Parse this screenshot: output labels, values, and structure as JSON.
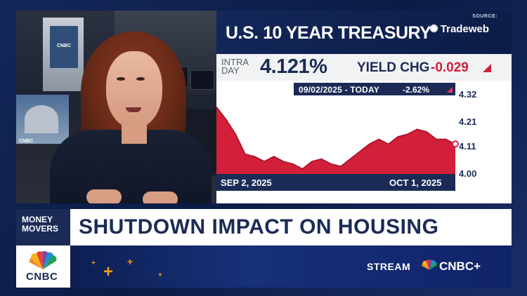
{
  "chart_panel": {
    "title": "U.S. 10 YEAR TREASURY",
    "source_label": "SOURCE:",
    "source_name": "Tradeweb",
    "intra_label": "INTRA DAY",
    "yield": "4.121%",
    "yield_change_label": "YIELD CHG",
    "yield_change_value": "-0.029",
    "range_label": "09/02/2025 - TODAY",
    "range_change": "-2.62%"
  },
  "chart_data": {
    "type": "area",
    "x_start_label": "SEP 2, 2025",
    "x_end_label": "OCT 1, 2025",
    "ytick_labels": [
      "4.32",
      "4.21",
      "4.11",
      "4.00"
    ],
    "ylim": [
      4.0,
      4.32
    ],
    "values": [
      4.27,
      4.22,
      4.16,
      4.08,
      4.07,
      4.05,
      4.07,
      4.05,
      4.04,
      4.02,
      4.05,
      4.06,
      4.04,
      4.03,
      4.06,
      4.09,
      4.12,
      4.14,
      4.12,
      4.15,
      4.16,
      4.18,
      4.17,
      4.14,
      4.14,
      4.12
    ],
    "last_value": 4.121,
    "area_color": "#d21f3a",
    "grid": false
  },
  "lower_third": {
    "show_name": "MONEY MOVERS",
    "headline": "SHUTDOWN IMPACT ON HOUSING",
    "network": "CNBC",
    "stream_label": "STREAM",
    "stream_brand": "CNBC+"
  },
  "video": {
    "backdrop_label": "CNBC"
  },
  "colors": {
    "navy": "#1b2b55",
    "accent_red": "#d21f3a",
    "orange": "#f39a1e"
  },
  "icons": {
    "source": "tradeweb-starburst-icon",
    "network_logo": "nbc-peacock-icon",
    "change_direction": "down-triangle-icon"
  }
}
